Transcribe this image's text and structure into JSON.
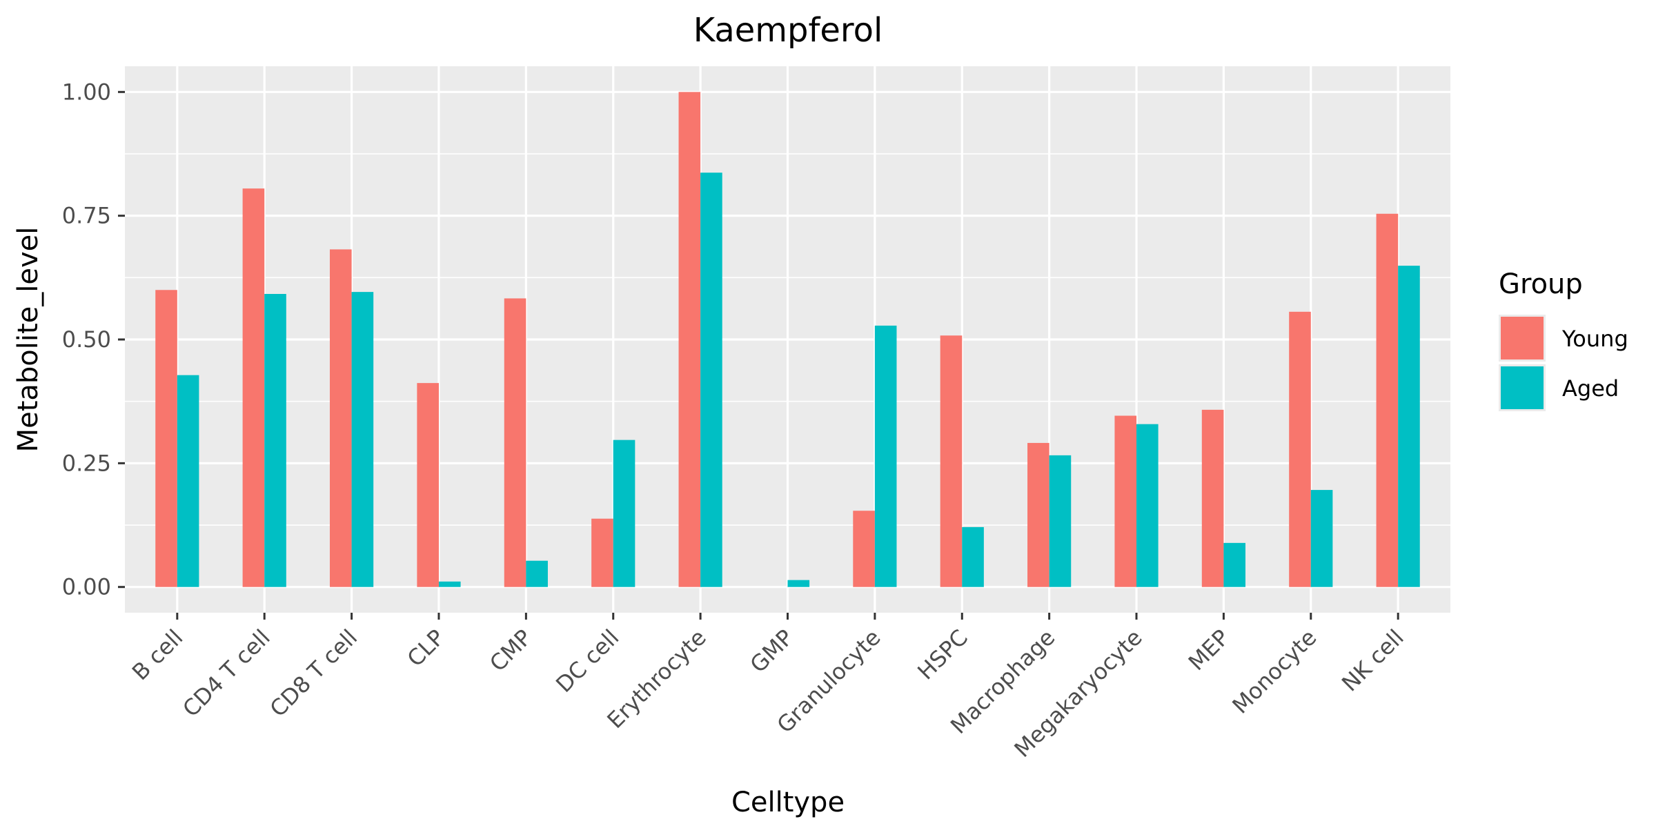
{
  "chart_data": {
    "type": "bar",
    "title": "Kaempferol",
    "xlabel": "Celltype",
    "ylabel": "Metabolite_level",
    "categories": [
      "B cell",
      "CD4 T cell",
      "CD8 T cell",
      "CLP",
      "CMP",
      "DC cell",
      "Erythrocyte",
      "GMP",
      "Granulocyte",
      "HSPC",
      "Macrophage",
      "Megakaryocyte",
      "MEP",
      "Monocyte",
      "NK cell"
    ],
    "series": [
      {
        "name": "Young",
        "color": "#F8766D",
        "values": [
          0.6,
          0.805,
          0.682,
          0.412,
          0.583,
          0.138,
          1.0,
          0.0,
          0.154,
          0.508,
          0.291,
          0.346,
          0.358,
          0.556,
          0.754
        ]
      },
      {
        "name": "Aged",
        "color": "#00BFC4",
        "values": [
          0.428,
          0.592,
          0.596,
          0.011,
          0.053,
          0.297,
          0.837,
          0.014,
          0.528,
          0.121,
          0.266,
          0.329,
          0.089,
          0.196,
          0.649
        ]
      }
    ],
    "ylim": [
      -0.052,
      1.052
    ],
    "yticks": [
      0.0,
      0.25,
      0.5,
      0.75,
      1.0
    ],
    "ytick_labels": [
      "0.00",
      "0.25",
      "0.50",
      "0.75",
      "1.00"
    ],
    "grid": true,
    "legend": {
      "title": "Group",
      "position": "right"
    }
  }
}
